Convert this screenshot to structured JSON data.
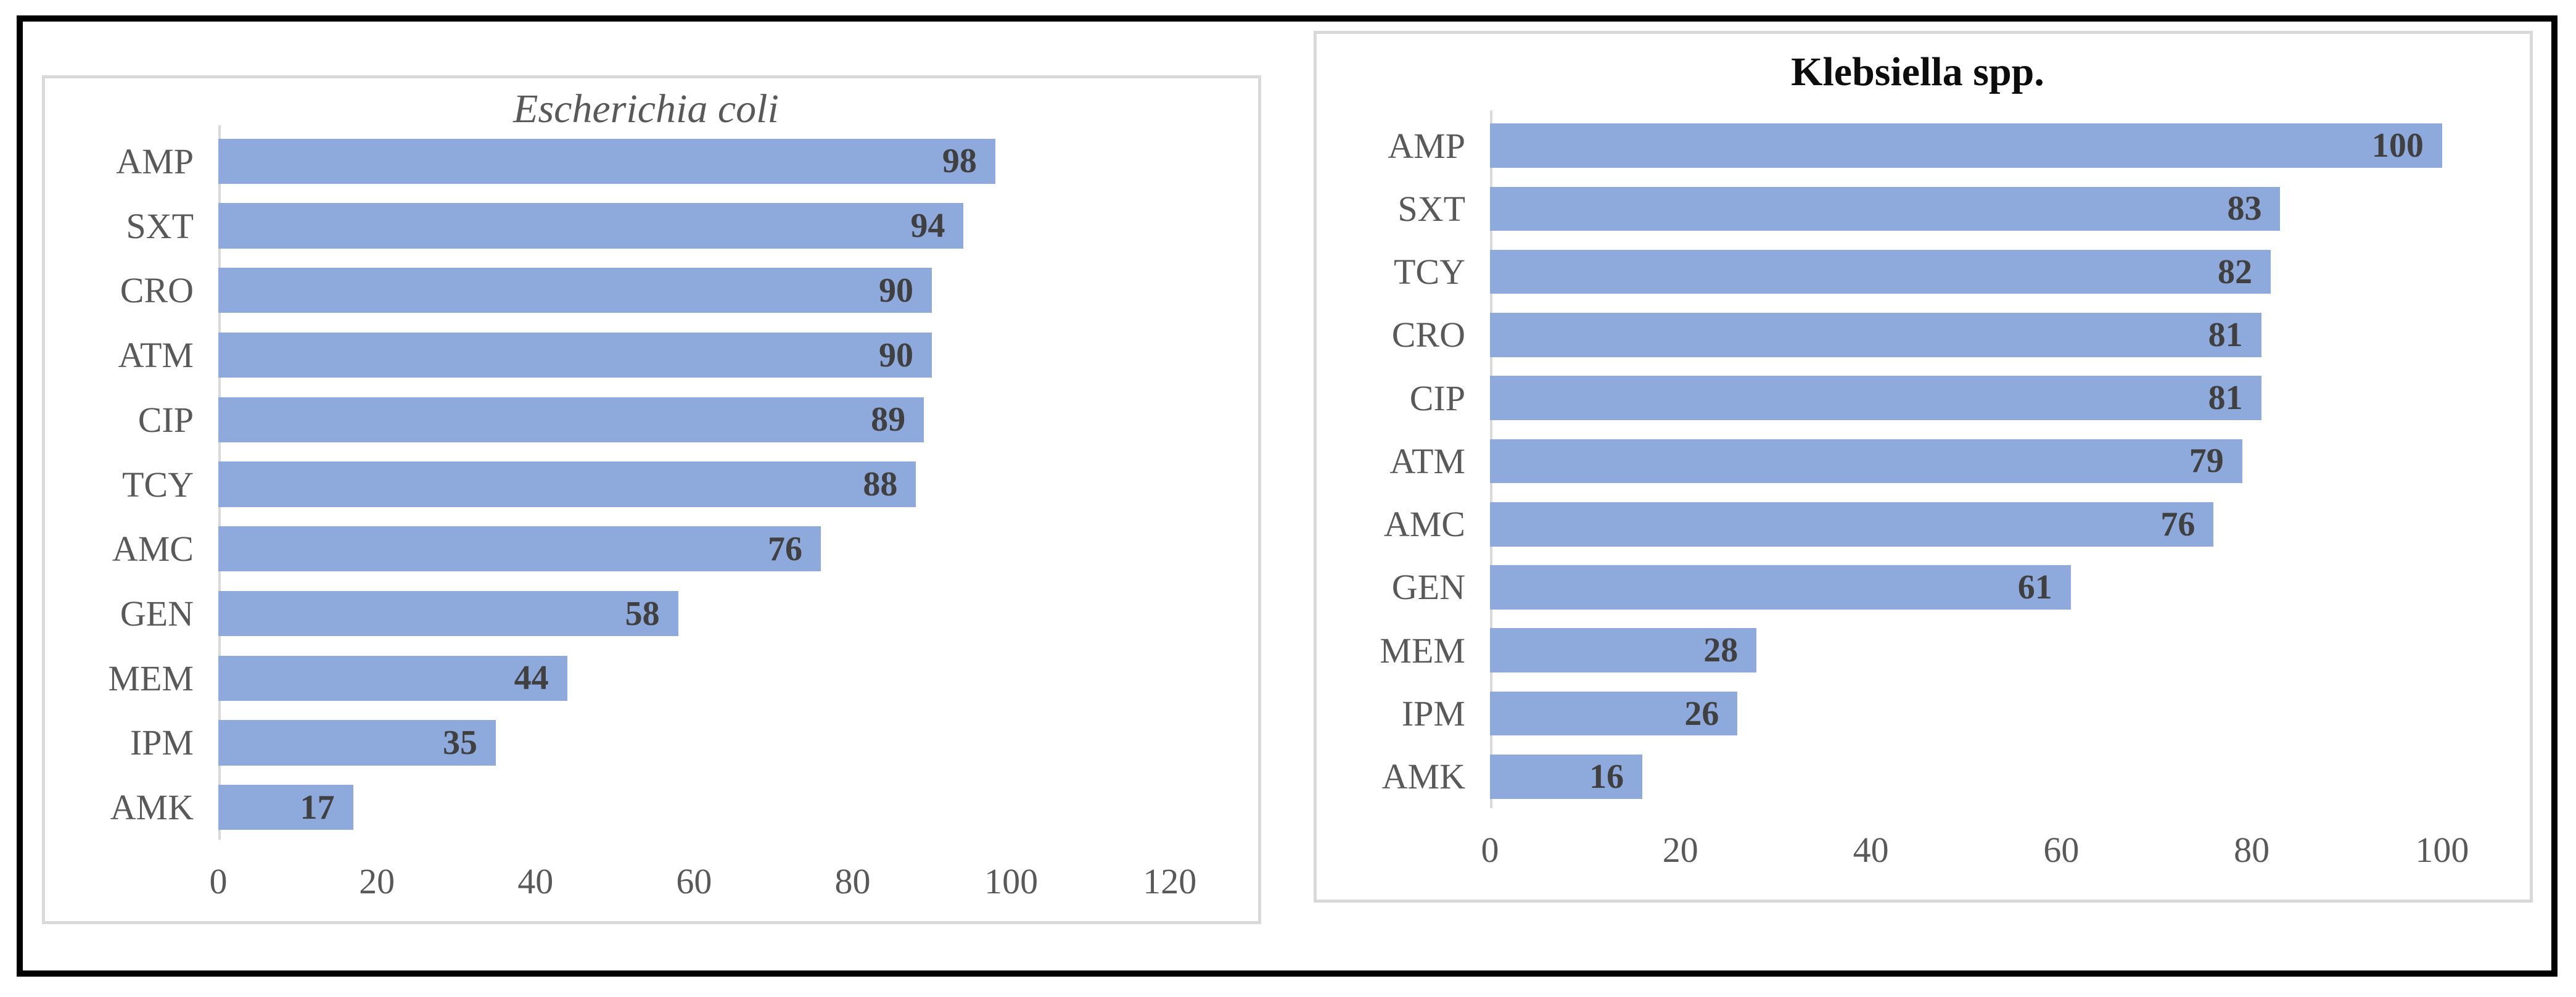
{
  "figure": {
    "description": "Two horizontal bar charts of antibiotic resistance percentages",
    "outer_border_color": "#000000",
    "panel_border_color": "#d9d9d9",
    "background": "#ffffff"
  },
  "colors": {
    "bar_fill": "#8EA9DB",
    "axis_line": "#d9d9d9",
    "category_label": "#595959",
    "tick_label": "#595959",
    "data_label": "#404040",
    "title_left": "#595959",
    "title_right": "#0d0d0d"
  },
  "chart_data": [
    {
      "type": "bar",
      "orientation": "horizontal",
      "title": "Escherichia coli",
      "title_style": "italic",
      "categories": [
        "AMP",
        "SXT",
        "CRO",
        "ATM",
        "CIP",
        "TCY",
        "AMC",
        "GEN",
        "MEM",
        "IPM",
        "AMK"
      ],
      "values": [
        98,
        94,
        90,
        90,
        89,
        88,
        76,
        58,
        44,
        35,
        17
      ],
      "xticks": [
        0,
        20,
        40,
        60,
        80,
        100,
        120
      ],
      "xlim": [
        0,
        128.5
      ],
      "xlabel": "",
      "ylabel": "",
      "data_labels": "inside-end",
      "grid": false,
      "legend": "none",
      "bar_color": "#8EA9DB"
    },
    {
      "type": "bar",
      "orientation": "horizontal",
      "title": "Klebsiella spp.",
      "title_style": "bold",
      "categories": [
        "AMP",
        "SXT",
        "TCY",
        "CRO",
        "CIP",
        "ATM",
        "AMC",
        "GEN",
        "MEM",
        "IPM",
        "AMK"
      ],
      "values": [
        100,
        83,
        82,
        81,
        81,
        79,
        76,
        61,
        28,
        26,
        16
      ],
      "xticks": [
        0,
        20,
        40,
        60,
        80,
        100
      ],
      "xlim": [
        0,
        107
      ],
      "xlabel": "",
      "ylabel": "",
      "data_labels": "inside-end",
      "grid": false,
      "legend": "none",
      "bar_color": "#8EA9DB"
    }
  ]
}
